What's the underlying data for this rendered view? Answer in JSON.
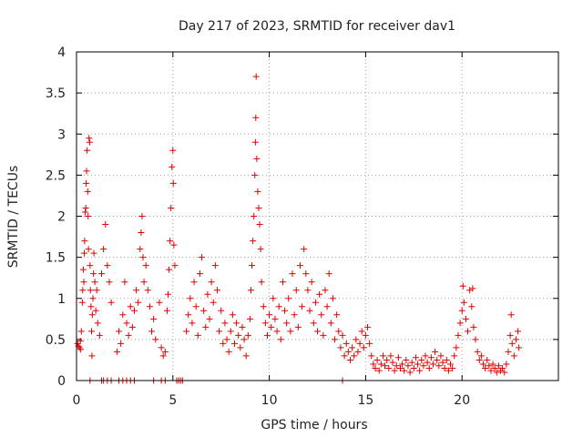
{
  "chart_data": {
    "type": "scatter",
    "title": "Day 217 of 2023, SRMTID for receiver dav1",
    "xlabel": "GPS time / hours",
    "ylabel": "SRMTID / TECUs",
    "xlim": [
      0,
      25
    ],
    "ylim": [
      0,
      4
    ],
    "xticks": [
      0,
      5,
      10,
      15,
      20
    ],
    "xtick_labels": [
      "0",
      "5",
      "10",
      "15",
      "20"
    ],
    "yticks": [
      0,
      0.5,
      1,
      1.5,
      2,
      2.5,
      3,
      3.5,
      4
    ],
    "ytick_labels": [
      "0",
      "0.5",
      "1",
      "1.5",
      "2",
      "2.5",
      "3",
      "3.5",
      "4"
    ],
    "grid": true,
    "marker": "plus",
    "color": "#e00000",
    "series": [
      {
        "name": "SRMTID",
        "points": [
          [
            0.05,
            0.45
          ],
          [
            0.1,
            0.42
          ],
          [
            0.15,
            0.4
          ],
          [
            0.2,
            0.48
          ],
          [
            0.22,
            0.38
          ],
          [
            0.25,
            0.6
          ],
          [
            0.3,
            0.95
          ],
          [
            0.32,
            1.1
          ],
          [
            0.35,
            1.35
          ],
          [
            0.38,
            1.2
          ],
          [
            0.4,
            1.55
          ],
          [
            0.42,
            1.7
          ],
          [
            0.45,
            2.05
          ],
          [
            0.48,
            2.1
          ],
          [
            0.5,
            2.4
          ],
          [
            0.52,
            2.55
          ],
          [
            0.55,
            2.8
          ],
          [
            0.58,
            2.3
          ],
          [
            0.6,
            2.0
          ],
          [
            0.62,
            1.6
          ],
          [
            0.65,
            2.95
          ],
          [
            0.68,
            2.9
          ],
          [
            0.7,
            1.4
          ],
          [
            0.72,
            1.1
          ],
          [
            0.75,
            0.9
          ],
          [
            0.78,
            0.6
          ],
          [
            0.8,
            0.3
          ],
          [
            0.82,
            0.8
          ],
          [
            0.85,
            1.0
          ],
          [
            0.88,
            1.3
          ],
          [
            0.9,
            1.55
          ],
          [
            0.95,
            1.2
          ],
          [
            1.0,
            0.85
          ],
          [
            1.05,
            1.1
          ],
          [
            1.1,
            0.7
          ],
          [
            1.2,
            0.55
          ],
          [
            1.3,
            1.3
          ],
          [
            1.4,
            1.6
          ],
          [
            1.5,
            1.9
          ],
          [
            1.6,
            1.4
          ],
          [
            1.7,
            1.2
          ],
          [
            1.8,
            0.95
          ],
          [
            2.1,
            0.35
          ],
          [
            2.2,
            0.6
          ],
          [
            2.3,
            0.45
          ],
          [
            2.4,
            0.8
          ],
          [
            2.5,
            1.2
          ],
          [
            2.6,
            0.7
          ],
          [
            2.7,
            0.55
          ],
          [
            2.8,
            0.9
          ],
          [
            2.9,
            0.65
          ],
          [
            3.0,
            0.85
          ],
          [
            3.1,
            1.1
          ],
          [
            3.2,
            0.95
          ],
          [
            3.3,
            1.6
          ],
          [
            3.35,
            1.8
          ],
          [
            3.4,
            2.0
          ],
          [
            3.45,
            1.5
          ],
          [
            3.5,
            1.2
          ],
          [
            3.6,
            1.4
          ],
          [
            3.7,
            1.1
          ],
          [
            3.8,
            0.9
          ],
          [
            3.9,
            0.6
          ],
          [
            4.0,
            0.75
          ],
          [
            4.1,
            0.5
          ],
          [
            4.3,
            0.95
          ],
          [
            4.4,
            0.4
          ],
          [
            4.5,
            0.3
          ],
          [
            4.6,
            0.35
          ],
          [
            4.7,
            0.85
          ],
          [
            4.75,
            1.05
          ],
          [
            4.8,
            1.35
          ],
          [
            4.85,
            1.7
          ],
          [
            4.9,
            2.1
          ],
          [
            4.95,
            2.6
          ],
          [
            5.0,
            2.8
          ],
          [
            5.02,
            2.4
          ],
          [
            5.05,
            1.65
          ],
          [
            5.1,
            1.4
          ],
          [
            5.7,
            0.6
          ],
          [
            5.8,
            0.8
          ],
          [
            5.9,
            1.0
          ],
          [
            6.0,
            0.7
          ],
          [
            6.1,
            1.2
          ],
          [
            6.2,
            0.9
          ],
          [
            6.3,
            0.55
          ],
          [
            6.4,
            1.3
          ],
          [
            6.5,
            1.5
          ],
          [
            6.6,
            0.85
          ],
          [
            6.7,
            0.65
          ],
          [
            6.8,
            1.05
          ],
          [
            6.9,
            0.75
          ],
          [
            7.0,
            1.2
          ],
          [
            7.1,
            0.95
          ],
          [
            7.2,
            1.4
          ],
          [
            7.3,
            1.1
          ],
          [
            7.4,
            0.6
          ],
          [
            7.5,
            0.85
          ],
          [
            7.6,
            0.45
          ],
          [
            7.7,
            0.7
          ],
          [
            7.8,
            0.5
          ],
          [
            7.9,
            0.35
          ],
          [
            8.0,
            0.6
          ],
          [
            8.1,
            0.8
          ],
          [
            8.2,
            0.45
          ],
          [
            8.3,
            0.7
          ],
          [
            8.4,
            0.55
          ],
          [
            8.5,
            0.4
          ],
          [
            8.6,
            0.65
          ],
          [
            8.7,
            0.5
          ],
          [
            8.8,
            0.3
          ],
          [
            8.9,
            0.55
          ],
          [
            9.0,
            0.75
          ],
          [
            9.05,
            1.1
          ],
          [
            9.1,
            1.4
          ],
          [
            9.15,
            1.7
          ],
          [
            9.2,
            2.0
          ],
          [
            9.25,
            2.5
          ],
          [
            9.28,
            2.9
          ],
          [
            9.3,
            3.2
          ],
          [
            9.32,
            3.7
          ],
          [
            9.35,
            2.7
          ],
          [
            9.4,
            2.3
          ],
          [
            9.45,
            2.1
          ],
          [
            9.5,
            1.9
          ],
          [
            9.55,
            1.6
          ],
          [
            9.6,
            1.2
          ],
          [
            9.7,
            0.9
          ],
          [
            9.8,
            0.7
          ],
          [
            9.9,
            0.55
          ],
          [
            10.0,
            0.8
          ],
          [
            10.1,
            0.65
          ],
          [
            10.2,
            1.0
          ],
          [
            10.3,
            0.75
          ],
          [
            10.4,
            0.6
          ],
          [
            10.5,
            0.9
          ],
          [
            10.6,
            0.5
          ],
          [
            10.7,
            1.2
          ],
          [
            10.8,
            0.85
          ],
          [
            10.9,
            0.7
          ],
          [
            11.0,
            1.0
          ],
          [
            11.1,
            0.6
          ],
          [
            11.2,
            1.3
          ],
          [
            11.3,
            0.8
          ],
          [
            11.4,
            1.1
          ],
          [
            11.5,
            0.65
          ],
          [
            11.6,
            1.4
          ],
          [
            11.7,
            0.9
          ],
          [
            11.8,
            1.6
          ],
          [
            11.9,
            1.3
          ],
          [
            12.0,
            1.1
          ],
          [
            12.1,
            0.85
          ],
          [
            12.2,
            1.2
          ],
          [
            12.3,
            0.7
          ],
          [
            12.4,
            0.95
          ],
          [
            12.5,
            0.6
          ],
          [
            12.6,
            1.05
          ],
          [
            12.7,
            0.8
          ],
          [
            12.8,
            0.55
          ],
          [
            12.9,
            1.1
          ],
          [
            13.0,
            0.9
          ],
          [
            13.1,
            1.3
          ],
          [
            13.2,
            0.7
          ],
          [
            13.3,
            1.0
          ],
          [
            13.4,
            0.5
          ],
          [
            13.5,
            0.8
          ],
          [
            13.6,
            0.6
          ],
          [
            13.7,
            0.4
          ],
          [
            13.8,
            0.55
          ],
          [
            13.9,
            0.3
          ],
          [
            14.0,
            0.45
          ],
          [
            14.1,
            0.35
          ],
          [
            14.2,
            0.25
          ],
          [
            14.3,
            0.4
          ],
          [
            14.4,
            0.3
          ],
          [
            14.5,
            0.5
          ],
          [
            14.6,
            0.35
          ],
          [
            14.7,
            0.45
          ],
          [
            14.8,
            0.6
          ],
          [
            14.9,
            0.4
          ],
          [
            15.0,
            0.55
          ],
          [
            15.1,
            0.65
          ],
          [
            15.2,
            0.45
          ],
          [
            15.3,
            0.3
          ],
          [
            15.4,
            0.2
          ],
          [
            15.5,
            0.15
          ],
          [
            15.6,
            0.25
          ],
          [
            15.7,
            0.12
          ],
          [
            15.8,
            0.2
          ],
          [
            15.9,
            0.3
          ],
          [
            16.0,
            0.18
          ],
          [
            16.1,
            0.25
          ],
          [
            16.2,
            0.15
          ],
          [
            16.3,
            0.3
          ],
          [
            16.4,
            0.22
          ],
          [
            16.5,
            0.12
          ],
          [
            16.6,
            0.18
          ],
          [
            16.7,
            0.28
          ],
          [
            16.8,
            0.15
          ],
          [
            16.9,
            0.2
          ],
          [
            17.0,
            0.12
          ],
          [
            17.1,
            0.25
          ],
          [
            17.2,
            0.18
          ],
          [
            17.3,
            0.1
          ],
          [
            17.4,
            0.22
          ],
          [
            17.5,
            0.15
          ],
          [
            17.6,
            0.28
          ],
          [
            17.7,
            0.2
          ],
          [
            17.8,
            0.12
          ],
          [
            17.9,
            0.25
          ],
          [
            18.0,
            0.18
          ],
          [
            18.1,
            0.3
          ],
          [
            18.2,
            0.22
          ],
          [
            18.3,
            0.15
          ],
          [
            18.4,
            0.28
          ],
          [
            18.5,
            0.2
          ],
          [
            18.6,
            0.35
          ],
          [
            18.7,
            0.25
          ],
          [
            18.8,
            0.18
          ],
          [
            18.9,
            0.3
          ],
          [
            19.0,
            0.22
          ],
          [
            19.1,
            0.15
          ],
          [
            19.2,
            0.25
          ],
          [
            19.3,
            0.12
          ],
          [
            19.4,
            0.2
          ],
          [
            19.5,
            0.15
          ],
          [
            19.6,
            0.3
          ],
          [
            19.7,
            0.4
          ],
          [
            19.8,
            0.55
          ],
          [
            19.9,
            0.7
          ],
          [
            20.0,
            0.85
          ],
          [
            20.05,
            1.15
          ],
          [
            20.1,
            0.95
          ],
          [
            20.2,
            0.75
          ],
          [
            20.3,
            0.6
          ],
          [
            20.4,
            1.1
          ],
          [
            20.5,
            0.9
          ],
          [
            20.55,
            1.12
          ],
          [
            20.6,
            0.65
          ],
          [
            20.7,
            0.5
          ],
          [
            20.8,
            0.35
          ],
          [
            20.9,
            0.25
          ],
          [
            21.0,
            0.3
          ],
          [
            21.1,
            0.2
          ],
          [
            21.2,
            0.15
          ],
          [
            21.3,
            0.25
          ],
          [
            21.4,
            0.18
          ],
          [
            21.5,
            0.12
          ],
          [
            21.6,
            0.2
          ],
          [
            21.7,
            0.15
          ],
          [
            21.8,
            0.1
          ],
          [
            21.9,
            0.18
          ],
          [
            22.0,
            0.12
          ],
          [
            22.1,
            0.15
          ],
          [
            22.2,
            0.1
          ],
          [
            22.3,
            0.2
          ],
          [
            22.4,
            0.35
          ],
          [
            22.5,
            0.55
          ],
          [
            22.55,
            0.8
          ],
          [
            22.6,
            0.45
          ],
          [
            22.7,
            0.3
          ],
          [
            22.8,
            0.5
          ],
          [
            22.9,
            0.6
          ],
          [
            22.95,
            0.4
          ],
          [
            0.7,
            0.0
          ],
          [
            1.3,
            0.0
          ],
          [
            1.4,
            0.0
          ],
          [
            1.6,
            0.0
          ],
          [
            1.8,
            0.0
          ],
          [
            2.2,
            0.0
          ],
          [
            2.4,
            0.0
          ],
          [
            2.6,
            0.0
          ],
          [
            2.8,
            0.0
          ],
          [
            3.0,
            0.0
          ],
          [
            4.0,
            0.0
          ],
          [
            4.4,
            0.0
          ],
          [
            4.6,
            0.0
          ],
          [
            5.2,
            0.0
          ],
          [
            5.3,
            0.0
          ],
          [
            5.4,
            0.0
          ],
          [
            5.5,
            0.0
          ],
          [
            13.8,
            0.0
          ]
        ]
      }
    ]
  }
}
